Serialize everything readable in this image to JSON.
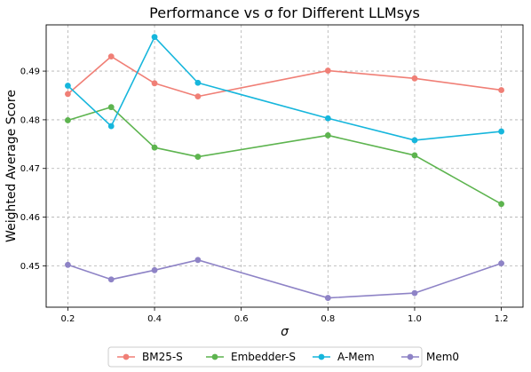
{
  "chart_data": {
    "type": "line",
    "title": "Performance vs σ for Different LLMsys",
    "xlabel": "σ",
    "ylabel": "Weighted Average Score",
    "x": [
      0.2,
      0.3,
      0.4,
      0.5,
      0.8,
      1.0,
      1.2
    ],
    "xlim": [
      0.15,
      1.25
    ],
    "ylim": [
      0.4415,
      0.4995
    ],
    "xticks": [
      0.2,
      0.4,
      0.6,
      0.8,
      1.0,
      1.2
    ],
    "xtick_labels": [
      "0.2",
      "0.4",
      "0.6",
      "0.8",
      "1.0",
      "1.2"
    ],
    "yticks": [
      0.45,
      0.46,
      0.47,
      0.48,
      0.49
    ],
    "ytick_labels": [
      "0.45",
      "0.46",
      "0.47",
      "0.48",
      "0.49"
    ],
    "grid": true,
    "legend_position": "bottom-center",
    "series": [
      {
        "name": "BM25-S",
        "color": "#f07f76",
        "values": [
          0.4853,
          0.493,
          0.4875,
          0.4848,
          0.4901,
          0.4885,
          0.4861
        ]
      },
      {
        "name": "Embedder-S",
        "color": "#5db44f",
        "values": [
          0.4799,
          0.4826,
          0.4743,
          0.4724,
          0.4768,
          0.4727,
          0.4627
        ]
      },
      {
        "name": "A-Mem",
        "color": "#16b6dc",
        "values": [
          0.487,
          0.4787,
          0.497,
          0.4876,
          0.4803,
          0.4758,
          0.4776
        ]
      },
      {
        "name": "Mem0",
        "color": "#8e83c6",
        "values": [
          0.4502,
          0.4472,
          0.4491,
          0.4512,
          0.4434,
          0.4444,
          0.4505
        ]
      }
    ]
  }
}
